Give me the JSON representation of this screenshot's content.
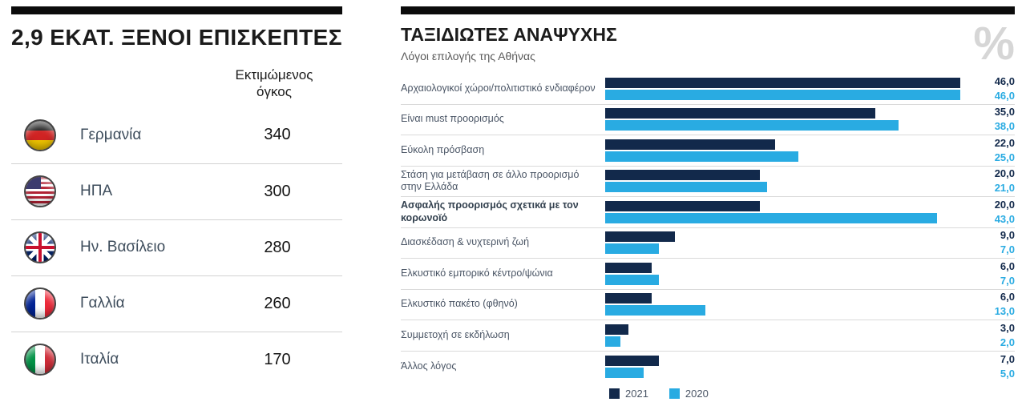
{
  "colors": {
    "header_bar": "#0b0b0b",
    "separator": "#d2d2d2"
  },
  "left_panel": {
    "flags": [
      {
        "icon": "germany-flag-icon",
        "css": "flag-de"
      },
      {
        "icon": "usa-flag-icon",
        "css": "flag-us"
      },
      {
        "icon": "uk-flag-icon",
        "css": "flag-uk"
      },
      {
        "icon": "france-flag-icon",
        "css": "flag-fr"
      },
      {
        "icon": "italy-flag-icon",
        "css": "flag-it"
      }
    ]
  },
  "chart_data": [
    {
      "type": "table",
      "title": "2,9 ΕΚΑΤ. ΞΕΝΟΙ ΕΠΙΣΚΕΠΤΕΣ",
      "column_header": "Εκτιμώμενος όγκος",
      "categories": [
        "Γερμανία",
        "ΗΠΑ",
        "Ην. Βασίλειο",
        "Γαλλία",
        "Ιταλία"
      ],
      "values": [
        340,
        300,
        280,
        260,
        170
      ]
    },
    {
      "type": "bar",
      "orientation": "horizontal",
      "title": "ΤΑΞΙΔΙΩΤΕΣ ΑΝΑΨΥΧΗΣ",
      "subtitle": "Λόγοι επιλογής της Αθήνας",
      "value_unit": "%",
      "xlim": [
        0,
        46
      ],
      "grid": false,
      "legend_position": "bottom",
      "categories": [
        "Αρχαιολογικοί χώροι/πολιτιστικό ενδιαφέρον",
        "Είναι must προορισμός",
        "Εύκολη πρόσβαση",
        "Στάση για μετάβαση σε άλλο προορισμό στην Ελλάδα",
        "Ασφαλής προορισμός σχετικά με τον κορωνοϊό",
        "Διασκέδαση & νυχτερινή ζωή",
        "Ελκυστικό εμπορικό κέντρο/ψώνια",
        "Ελκυστικό πακέτο (φθηνό)",
        "Συμμετοχή σε εκδήλωση",
        "Άλλος λόγος"
      ],
      "emphasized_category_index": 4,
      "series": [
        {
          "name": "2021",
          "color": "#12294b",
          "values": [
            46.0,
            35.0,
            22.0,
            20.0,
            20.0,
            9.0,
            6.0,
            6.0,
            3.0,
            7.0
          ]
        },
        {
          "name": "2020",
          "color": "#29abe2",
          "values": [
            46.0,
            38.0,
            25.0,
            21.0,
            43.0,
            7.0,
            7.0,
            13.0,
            2.0,
            5.0
          ]
        }
      ]
    }
  ]
}
